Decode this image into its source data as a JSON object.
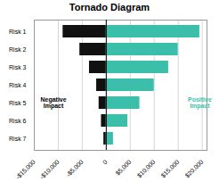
{
  "chart_data": {
    "type": "bar",
    "orientation": "horizontal",
    "title": "Tornado Diagram",
    "categories": [
      "Risk 1",
      "Risk 2",
      "Risk 3",
      "Risk 4",
      "Risk 5",
      "Risk 6",
      "Risk 7"
    ],
    "series": [
      {
        "color": "#111111",
        "values": [
          -9000,
          -5500,
          -3500,
          -2000,
          -1500,
          -1000,
          -500
        ]
      },
      {
        "color": "#3cbfaa",
        "values": [
          19500,
          15000,
          13000,
          10000,
          7000,
          4500,
          1500
        ]
      }
    ],
    "xlim": [
      -15000,
      21000
    ],
    "xticks": [
      {
        "value": -15000,
        "label": "-$15,000"
      },
      {
        "value": -10000,
        "label": "-$10,000"
      },
      {
        "value": -5000,
        "label": "-$5,000"
      },
      0,
      {
        "value": 5000,
        "label": "$5,000"
      },
      {
        "value": 10000,
        "label": "$10,000"
      },
      {
        "value": 15000,
        "label": "$15,000"
      },
      {
        "value": 20000,
        "label": "$20,000"
      }
    ],
    "grid": true,
    "annotations": [
      {
        "text": "Negative\nImpact",
        "x": -11000,
        "y": "Risk 5"
      },
      {
        "text": "Positive\nImpact",
        "x": 19500,
        "y": "Risk 5",
        "color": "#3cbfaa"
      }
    ]
  }
}
